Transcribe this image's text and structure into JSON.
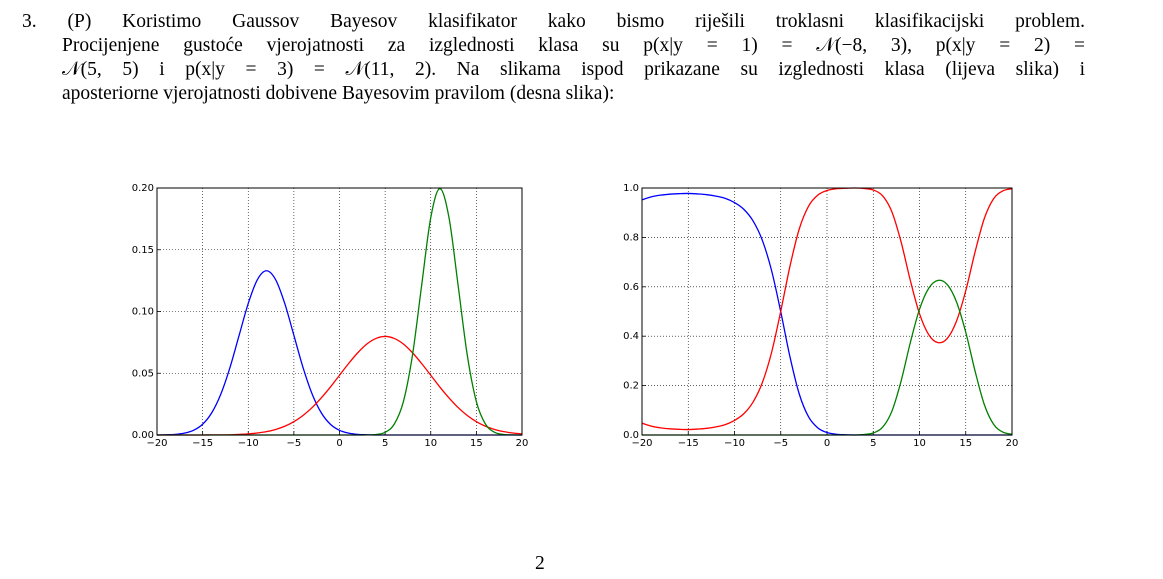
{
  "problem": {
    "lines": [
      "3. (P) Koristimo Gaussov Bayesov klasifikator kako bismo riješili troklasni klasifikacijski problem.",
      "Procijenjene gustoće vjerojatnosti za izglednosti klasa su p(x|y = 1) = 𝒩(−8, 3), p(x|y = 2) =",
      "𝒩(5, 5) i p(x|y = 3) = 𝒩(11, 2). Na slikama ispod prikazane su izglednosti klasa (lijeva slika) i",
      "aposteriorne vjerojatnosti dobivene Bayesovim pravilom (desna slika):"
    ]
  },
  "charts": [
    {
      "type": "line",
      "grid": true,
      "x": [
        -20,
        -19,
        -18,
        -17,
        -16,
        -15,
        -14,
        -13,
        -12,
        -11,
        -10,
        -9,
        -8,
        -7,
        -6,
        -5,
        -4,
        -3,
        -2,
        -1,
        0,
        1,
        2,
        3,
        4,
        5,
        6,
        7,
        8,
        9,
        10,
        11,
        12,
        13,
        14,
        15,
        16,
        17,
        18,
        19,
        20
      ],
      "xlim": [
        -20,
        20
      ],
      "xticks": [
        {
          "value": -20,
          "label": "−20"
        },
        {
          "value": -15,
          "label": "−15"
        },
        {
          "value": -10,
          "label": "−10"
        },
        {
          "value": -5,
          "label": "−5"
        },
        0,
        5,
        10,
        15,
        20
      ],
      "ylim": [
        0,
        0.2
      ],
      "yticks": [
        {
          "value": 0,
          "label": "0.00"
        },
        {
          "value": 0.05,
          "label": "0.05"
        },
        {
          "value": 0.1,
          "label": "0.10"
        },
        {
          "value": 0.15,
          "label": "0.15"
        },
        {
          "value": 0.2,
          "label": "0.20"
        }
      ],
      "series": [
        {
          "color": "#0000ff",
          "values": [
            0,
            0.0002,
            0.0005,
            0.0015,
            0.0038,
            0.0087,
            0.018,
            0.0332,
            0.0547,
            0.0807,
            0.1065,
            0.1258,
            0.133,
            0.1258,
            0.1065,
            0.0807,
            0.0547,
            0.0332,
            0.018,
            0.0087,
            0.0038,
            0.0015,
            0.0005,
            0.0002,
            0,
            0,
            0,
            0,
            0,
            0,
            0,
            0,
            0,
            0,
            0,
            0,
            0,
            0,
            0,
            0,
            0
          ]
        },
        {
          "color": "#ff0000",
          "values": [
            0,
            0,
            0,
            0,
            0,
            0,
            0.0001,
            0.0001,
            0.0002,
            0.0005,
            0.0009,
            0.0016,
            0.0027,
            0.0045,
            0.0071,
            0.0108,
            0.0158,
            0.0222,
            0.03,
            0.0388,
            0.0484,
            0.0579,
            0.0666,
            0.0737,
            0.0782,
            0.0798,
            0.0782,
            0.0737,
            0.0666,
            0.0579,
            0.0484,
            0.0388,
            0.03,
            0.0222,
            0.0158,
            0.0108,
            0.0071,
            0.0045,
            0.0027,
            0.0016,
            0.0009
          ]
        },
        {
          "color": "#008000",
          "values": [
            0,
            0,
            0,
            0,
            0,
            0,
            0,
            0,
            0,
            0,
            0,
            0,
            0,
            0,
            0,
            0,
            0,
            0,
            0,
            0,
            0,
            0,
            0,
            0.0001,
            0.0004,
            0.0022,
            0.0088,
            0.027,
            0.0648,
            0.121,
            0.176,
            0.1995,
            0.176,
            0.121,
            0.0648,
            0.027,
            0.0088,
            0.0022,
            0.0004,
            0.0001,
            0
          ]
        }
      ]
    },
    {
      "type": "line",
      "grid": true,
      "x": [
        -20,
        -19,
        -18,
        -17,
        -16,
        -15,
        -14,
        -13,
        -12,
        -11,
        -10,
        -9,
        -8,
        -7,
        -6,
        -5,
        -4,
        -3,
        -2,
        -1,
        0,
        1,
        2,
        3,
        4,
        5,
        6,
        7,
        8,
        9,
        10,
        11,
        12,
        13,
        14,
        15,
        16,
        17,
        18,
        19,
        20
      ],
      "xlim": [
        -20,
        20
      ],
      "xticks": [
        {
          "value": -20,
          "label": "−20"
        },
        {
          "value": -15,
          "label": "−15"
        },
        {
          "value": -10,
          "label": "−10"
        },
        {
          "value": -5,
          "label": "−5"
        },
        0,
        5,
        10,
        15,
        20
      ],
      "ylim": [
        0,
        1
      ],
      "yticks": [
        {
          "value": 0,
          "label": "0.0"
        },
        {
          "value": 0.2,
          "label": "0.2"
        },
        {
          "value": 0.4,
          "label": "0.4"
        },
        {
          "value": 0.6,
          "label": "0.6"
        },
        {
          "value": 0.8,
          "label": "0.8"
        },
        {
          "value": 1,
          "label": "1.0"
        }
      ],
      "series": [
        {
          "color": "#0000ff",
          "values": [
            0.952,
            0.964,
            0.971,
            0.975,
            0.977,
            0.978,
            0.976,
            0.973,
            0.967,
            0.958,
            0.941,
            0.914,
            0.867,
            0.789,
            0.667,
            0.499,
            0.316,
            0.166,
            0.074,
            0.029,
            0.01,
            0.003,
            0.001,
            0,
            0,
            0,
            0,
            0,
            0,
            0,
            0,
            0,
            0,
            0,
            0,
            0,
            0,
            0,
            0,
            0,
            0
          ]
        },
        {
          "color": "#ff0000",
          "values": [
            0.048,
            0.036,
            0.029,
            0.025,
            0.023,
            0.022,
            0.024,
            0.027,
            0.033,
            0.042,
            0.059,
            0.086,
            0.133,
            0.211,
            0.333,
            0.501,
            0.684,
            0.834,
            0.926,
            0.971,
            0.99,
            0.997,
            0.999,
            1,
            0.998,
            0.992,
            0.969,
            0.905,
            0.783,
            0.627,
            0.491,
            0.406,
            0.374,
            0.391,
            0.461,
            0.584,
            0.74,
            0.876,
            0.956,
            0.988,
            0.997
          ]
        },
        {
          "color": "#008000",
          "values": [
            0,
            0,
            0,
            0,
            0,
            0,
            0,
            0,
            0,
            0,
            0,
            0,
            0,
            0,
            0,
            0,
            0,
            0,
            0,
            0,
            0,
            0,
            0,
            0,
            0.002,
            0.008,
            0.031,
            0.095,
            0.217,
            0.373,
            0.509,
            0.594,
            0.626,
            0.609,
            0.539,
            0.416,
            0.26,
            0.124,
            0.044,
            0.012,
            0.003
          ]
        }
      ]
    }
  ],
  "page_number": "2"
}
